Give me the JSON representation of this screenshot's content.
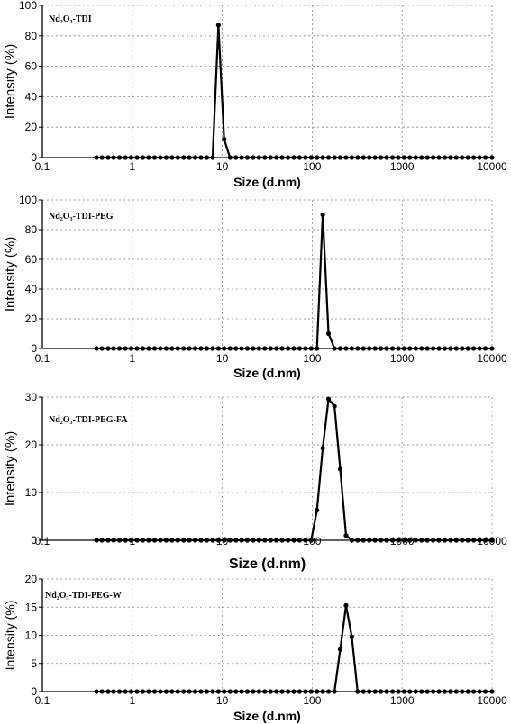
{
  "chart_data": [
    {
      "type": "line",
      "annotation": "Nd₂O₃-TDI",
      "xlabel": "Size (d.nm)",
      "ylabel": "Intensity (%)",
      "xscale": "log",
      "xlim": [
        0.1,
        10000
      ],
      "ylim": [
        0,
        100
      ],
      "xticks": [
        "0.1",
        "1",
        "10",
        "100",
        "1000",
        "10000"
      ],
      "yticks": [
        "0",
        "20",
        "40",
        "60",
        "80",
        "100"
      ],
      "grid": true,
      "series": [
        {
          "x": [
            0.4,
            0.46,
            0.54,
            0.62,
            0.72,
            0.84,
            0.97,
            1.13,
            1.31,
            1.52,
            1.77,
            2.05,
            2.38,
            2.76,
            3.2,
            3.72,
            4.31,
            5.0,
            5.8,
            6.73,
            7.82,
            9.07,
            10.5,
            12.2,
            14.2,
            16.4,
            19.0,
            22.1,
            25.6,
            29.7,
            34.5,
            40.0,
            46.4,
            53.9,
            62.5,
            72.5,
            84.1,
            97.5,
            113,
            131,
            152,
            177,
            205,
            238,
            276,
            320,
            372,
            431,
            500,
            580,
            673,
            782,
            907,
            1052,
            1220,
            1416,
            1643,
            1906,
            2211,
            2565,
            2975,
            3452,
            4005,
            4646,
            5390,
            6253,
            7254,
            8416,
            10000
          ],
          "y": [
            0,
            0,
            0,
            0,
            0,
            0,
            0,
            0,
            0,
            0,
            0,
            0,
            0,
            0,
            0,
            0,
            0,
            0,
            0,
            0,
            0,
            87,
            12,
            0,
            0,
            0,
            0,
            0,
            0,
            0,
            0,
            0,
            0,
            0,
            0,
            0,
            0,
            0,
            0,
            0,
            0,
            0,
            0,
            0,
            0,
            0,
            0,
            0,
            0,
            0,
            0,
            0,
            0,
            0,
            0,
            0,
            0,
            0,
            0,
            0,
            0,
            0,
            0,
            0,
            0,
            0,
            0,
            0,
            0
          ]
        }
      ]
    },
    {
      "type": "line",
      "annotation": "Nd₂O₃-TDI-PEG",
      "xlabel": "Size (d.nm)",
      "ylabel": "Intensity (%)",
      "xscale": "log",
      "xlim": [
        0.1,
        10000
      ],
      "ylim": [
        0,
        100
      ],
      "xticks": [
        "0.1",
        "1",
        "10",
        "100",
        "1000",
        "10000"
      ],
      "yticks": [
        "0",
        "20",
        "40",
        "60",
        "80",
        "100"
      ],
      "grid": true,
      "series": [
        {
          "x": [
            0.4,
            0.46,
            0.54,
            0.62,
            0.72,
            0.84,
            0.97,
            1.13,
            1.31,
            1.52,
            1.77,
            2.05,
            2.38,
            2.76,
            3.2,
            3.72,
            4.31,
            5.0,
            5.8,
            6.73,
            7.82,
            9.07,
            10.5,
            12.2,
            14.2,
            16.4,
            19.0,
            22.1,
            25.6,
            29.7,
            34.5,
            40.0,
            46.4,
            53.9,
            62.5,
            72.5,
            84.1,
            97.5,
            113,
            131,
            152,
            177,
            205,
            238,
            276,
            320,
            372,
            431,
            500,
            580,
            673,
            782,
            907,
            1052,
            1220,
            1416,
            1643,
            1906,
            2211,
            2565,
            2975,
            3452,
            4005,
            4646,
            5390,
            6253,
            7254,
            8416,
            10000
          ],
          "y": [
            0,
            0,
            0,
            0,
            0,
            0,
            0,
            0,
            0,
            0,
            0,
            0,
            0,
            0,
            0,
            0,
            0,
            0,
            0,
            0,
            0,
            0,
            0,
            0,
            0,
            0,
            0,
            0,
            0,
            0,
            0,
            0,
            0,
            0,
            0,
            0,
            0,
            0,
            0,
            90,
            10,
            0,
            0,
            0,
            0,
            0,
            0,
            0,
            0,
            0,
            0,
            0,
            0,
            0,
            0,
            0,
            0,
            0,
            0,
            0,
            0,
            0,
            0,
            0,
            0,
            0,
            0,
            0,
            0
          ]
        }
      ]
    },
    {
      "type": "line",
      "annotation": "Nd₂O₃-TDI-PEG-FA",
      "xlabel": "Size (d.nm)",
      "ylabel": "Intensity (%)",
      "xscale": "log",
      "xlim": [
        0.1,
        10000
      ],
      "ylim": [
        0,
        30
      ],
      "xticks": [
        "0.1",
        "1",
        "10",
        "100",
        "1000",
        "10000"
      ],
      "yticks": [
        "0",
        "10",
        "20",
        "30"
      ],
      "grid": true,
      "series": [
        {
          "x": [
            0.4,
            0.46,
            0.54,
            0.62,
            0.72,
            0.84,
            0.97,
            1.13,
            1.31,
            1.52,
            1.77,
            2.05,
            2.38,
            2.76,
            3.2,
            3.72,
            4.31,
            5.0,
            5.8,
            6.73,
            7.82,
            9.07,
            10.5,
            12.2,
            14.2,
            16.4,
            19.0,
            22.1,
            25.6,
            29.7,
            34.5,
            40.0,
            46.4,
            53.9,
            62.5,
            72.5,
            84.1,
            97.5,
            113,
            131,
            152,
            177,
            205,
            238,
            276,
            320,
            372,
            431,
            500,
            580,
            673,
            782,
            907,
            1052,
            1220,
            1416,
            1643,
            1906,
            2211,
            2565,
            2975,
            3452,
            4005,
            4646,
            5390,
            6253,
            7254,
            8416,
            10000
          ],
          "y": [
            0,
            0,
            0,
            0,
            0,
            0,
            0,
            0,
            0,
            0,
            0,
            0,
            0,
            0,
            0,
            0,
            0,
            0,
            0,
            0,
            0,
            0,
            0,
            0,
            0,
            0,
            0,
            0,
            0,
            0,
            0,
            0,
            0,
            0,
            0,
            0,
            0,
            0,
            6.3,
            19.3,
            29.6,
            28.1,
            14.9,
            1.0,
            0,
            0,
            0,
            0,
            0,
            0,
            0,
            0,
            0,
            0,
            0,
            0,
            0,
            0,
            0,
            0,
            0,
            0,
            0,
            0,
            0,
            0,
            0,
            0,
            0
          ]
        }
      ]
    },
    {
      "type": "line",
      "annotation": "Nd₂O₃-TDI-PEG-W",
      "xlabel": "Size (d.nm)",
      "ylabel": "Intensity (%)",
      "xscale": "log",
      "xlim": [
        0.1,
        10000
      ],
      "ylim": [
        0,
        20
      ],
      "xticks": [
        "0.1",
        "1",
        "10",
        "100",
        "1000",
        "10000"
      ],
      "yticks": [
        "0",
        "5",
        "10",
        "15",
        "20"
      ],
      "grid": true,
      "series": [
        {
          "x": [
            0.4,
            0.46,
            0.54,
            0.62,
            0.72,
            0.84,
            0.97,
            1.13,
            1.31,
            1.52,
            1.77,
            2.05,
            2.38,
            2.76,
            3.2,
            3.72,
            4.31,
            5.0,
            5.8,
            6.73,
            7.82,
            9.07,
            10.5,
            12.2,
            14.2,
            16.4,
            19.0,
            22.1,
            25.6,
            29.7,
            34.5,
            40.0,
            46.4,
            53.9,
            62.5,
            72.5,
            84.1,
            97.5,
            113,
            131,
            152,
            177,
            205,
            238,
            276,
            320,
            372,
            431,
            500,
            580,
            673,
            782,
            907,
            1052,
            1220,
            1416,
            1643,
            1906,
            2211,
            2565,
            2975,
            3452,
            4005,
            4646,
            5390,
            6253,
            7254,
            8416,
            10000
          ],
          "y": [
            0,
            0,
            0,
            0,
            0,
            0,
            0,
            0,
            0,
            0,
            0,
            0,
            0,
            0,
            0,
            0,
            0,
            0,
            0,
            0,
            0,
            0,
            0,
            0,
            0,
            0,
            0,
            0,
            0,
            0,
            0,
            0,
            0,
            0,
            0,
            0,
            0,
            0,
            0,
            0,
            0,
            0,
            7.5,
            15.3,
            9.7,
            0,
            0,
            0,
            0,
            0,
            0,
            0,
            0,
            0,
            0,
            0,
            0,
            0,
            0,
            0,
            0,
            0,
            0,
            0,
            0,
            0,
            0,
            0,
            0
          ]
        }
      ]
    }
  ]
}
